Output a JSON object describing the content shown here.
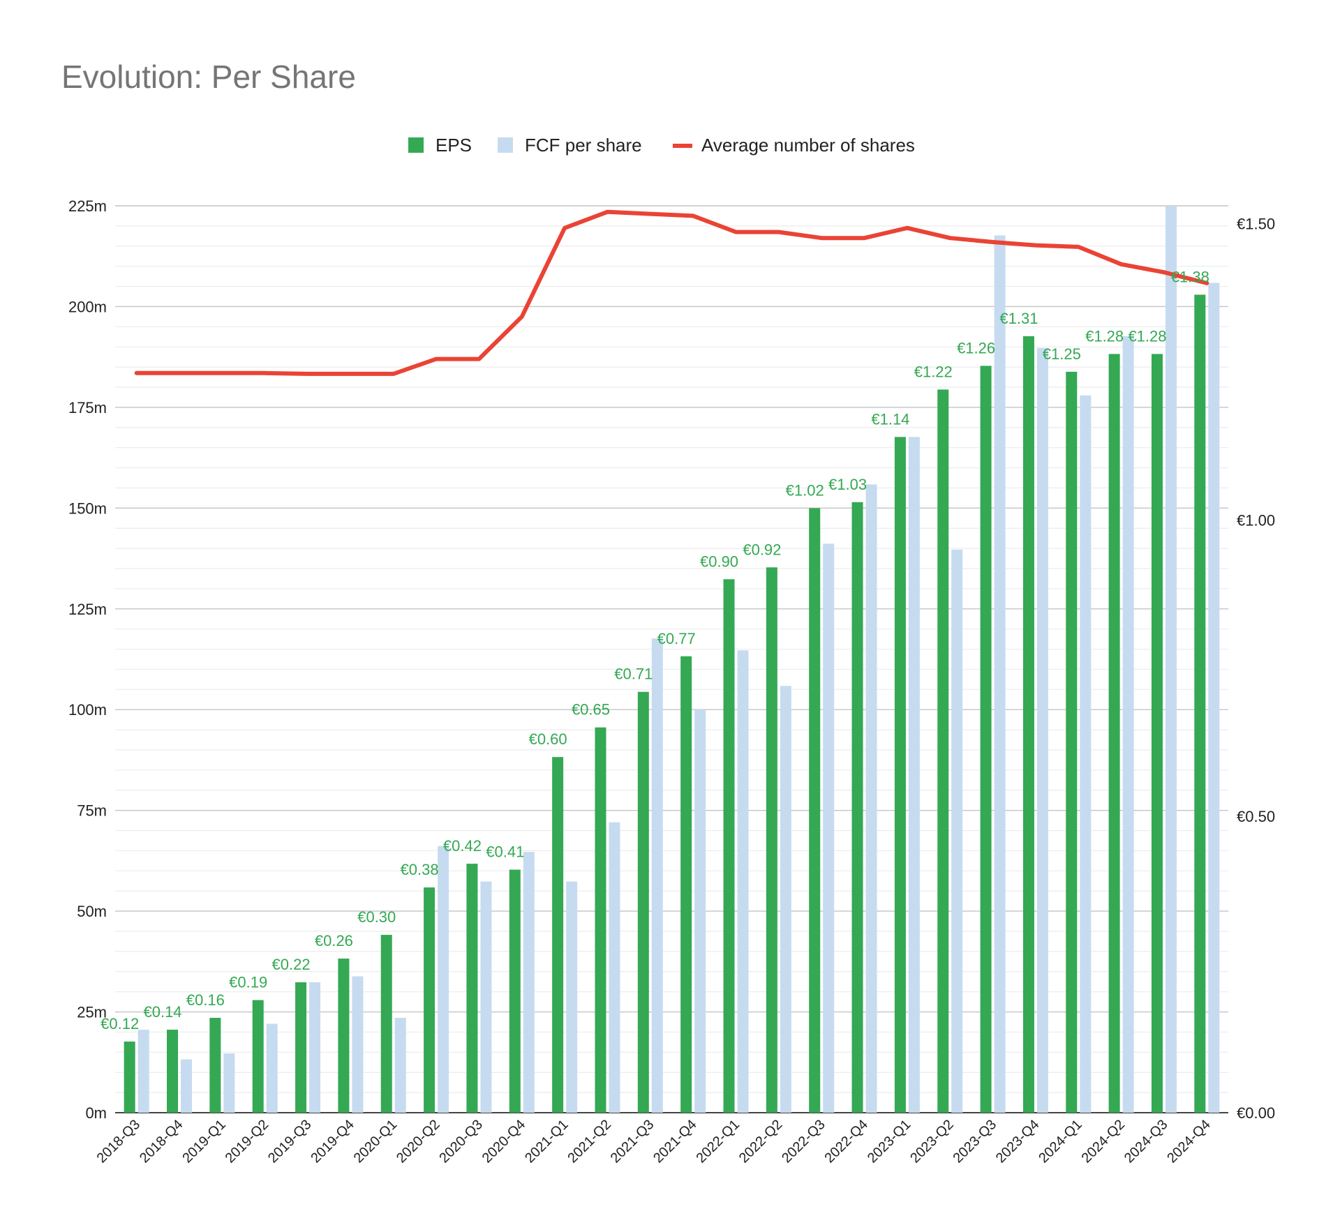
{
  "chart_data": {
    "type": "bar",
    "title": "Evolution: Per Share",
    "categories": [
      "2018-Q3",
      "2018-Q4",
      "2019-Q1",
      "2019-Q2",
      "2019-Q3",
      "2019-Q4",
      "2020-Q1",
      "2020-Q2",
      "2020-Q3",
      "2020-Q4",
      "2021-Q1",
      "2021-Q2",
      "2021-Q3",
      "2021-Q4",
      "2022-Q1",
      "2022-Q2",
      "2022-Q3",
      "2022-Q4",
      "2023-Q1",
      "2023-Q2",
      "2023-Q3",
      "2023-Q4",
      "2024-Q1",
      "2024-Q2",
      "2024-Q3",
      "2024-Q4"
    ],
    "series": [
      {
        "name": "EPS",
        "type": "bar",
        "axis": "right",
        "color": "#34a853",
        "values": [
          0.12,
          0.14,
          0.16,
          0.19,
          0.22,
          0.26,
          0.3,
          0.38,
          0.42,
          0.41,
          0.6,
          0.65,
          0.71,
          0.77,
          0.9,
          0.92,
          1.02,
          1.03,
          1.14,
          1.22,
          1.26,
          1.31,
          1.25,
          1.28,
          1.28,
          1.38
        ],
        "labels": [
          "€0.12",
          "€0.14",
          "€0.16",
          "€0.19",
          "€0.22",
          "€0.26",
          "€0.30",
          "€0.38",
          "€0.42",
          "€0.41",
          "€0.60",
          "€0.65",
          "€0.71",
          "€0.77",
          "€0.90",
          "€0.92",
          "€1.02",
          "€1.03",
          "€1.14",
          "€1.22",
          "€1.26",
          "€1.31",
          "€1.25",
          "€1.28",
          "€1.28",
          "€1.38"
        ]
      },
      {
        "name": "FCF per share",
        "type": "bar",
        "axis": "right",
        "color": "#c6dbf0",
        "values": [
          0.14,
          0.09,
          0.1,
          0.15,
          0.22,
          0.23,
          0.16,
          0.45,
          0.39,
          0.44,
          0.39,
          0.49,
          0.8,
          0.68,
          0.78,
          0.72,
          0.96,
          1.06,
          1.14,
          0.95,
          1.48,
          1.29,
          1.21,
          1.31,
          1.53,
          1.4
        ]
      },
      {
        "name": "Average number of shares",
        "type": "line",
        "axis": "left",
        "color": "#ea4335",
        "values": [
          183.5,
          183.5,
          183.5,
          183.5,
          183.3,
          183.3,
          183.3,
          187,
          187,
          197.5,
          219.5,
          223.5,
          223,
          222.5,
          218.5,
          218.5,
          217,
          217,
          219.5,
          217,
          216,
          215.2,
          214.8,
          210.5,
          208.5,
          205.8
        ]
      }
    ],
    "y_left": {
      "ticks": [
        "0m",
        "25m",
        "50m",
        "75m",
        "100m",
        "125m",
        "150m",
        "175m",
        "200m",
        "225m"
      ],
      "ylim": [
        0,
        225
      ]
    },
    "y_right": {
      "ticks": [
        "€0.00",
        "€0.50",
        "€1.00",
        "€1.50"
      ],
      "ylim": [
        0,
        1.53
      ]
    },
    "grid": true,
    "legend": "top-center"
  }
}
